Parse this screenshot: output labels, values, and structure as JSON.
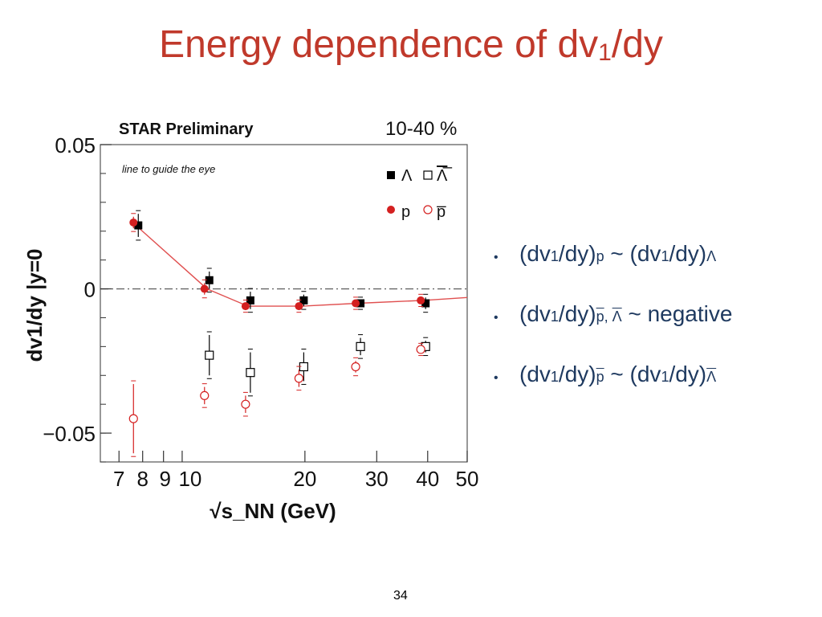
{
  "title": {
    "main": "Energy dependence of dv",
    "sub": "1",
    "tail": "/dy"
  },
  "chart_data": {
    "type": "scatter",
    "title": "STAR Preliminary",
    "centrality": "10-40 %",
    "annotation": "line to guide the eye",
    "xlabel": "√s_NN (GeV)",
    "ylabel": "dv1/dy |y=0",
    "xscale": "log",
    "xlim": [
      6.3,
      50
    ],
    "ylim": [
      -0.06,
      0.05
    ],
    "xticks": [
      "7",
      "8",
      "9",
      "10",
      "20",
      "30",
      "40",
      "50"
    ],
    "xtick_values": [
      7,
      8,
      9,
      10,
      20,
      30,
      40,
      50
    ],
    "yticks": [
      "0.05",
      "0",
      "−0.05"
    ],
    "ytick_values": [
      0.05,
      0,
      -0.05
    ],
    "legend": [
      "Λ",
      "Λ̅",
      "p",
      "p̅"
    ],
    "series": [
      {
        "name": "Lambda",
        "marker": "filled-square",
        "color": "#000000",
        "x": [
          7.7,
          11.5,
          14.5,
          19.6,
          27,
          39
        ],
        "y": [
          0.022,
          0.003,
          -0.004,
          -0.004,
          -0.005,
          -0.005
        ],
        "err": [
          0.004,
          0.003,
          0.003,
          0.002,
          0.001,
          0.002
        ]
      },
      {
        "name": "Lambda-bar",
        "marker": "open-square",
        "color": "#000000",
        "x": [
          11.5,
          14.5,
          19.6,
          27,
          39
        ],
        "y": [
          -0.023,
          -0.029,
          -0.027,
          -0.02,
          -0.02
        ],
        "err": [
          0.007,
          0.007,
          0.005,
          0.003,
          0.002
        ]
      },
      {
        "name": "p",
        "marker": "filled-circle",
        "color": "#d42020",
        "x": [
          7.7,
          11.5,
          14.5,
          19.6,
          27,
          39
        ],
        "y": [
          0.023,
          0.0,
          -0.006,
          -0.006,
          -0.005,
          -0.004
        ],
        "err": [
          0.002,
          0.002,
          0.001,
          0.001,
          0.001,
          0.001
        ]
      },
      {
        "name": "p-bar",
        "marker": "open-circle",
        "color": "#d42020",
        "x": [
          7.7,
          11.5,
          14.5,
          19.6,
          27,
          39
        ],
        "y": [
          -0.045,
          -0.037,
          -0.04,
          -0.031,
          -0.027,
          -0.021
        ],
        "err": [
          0.012,
          0.003,
          0.003,
          0.003,
          0.002,
          0.001
        ]
      }
    ],
    "guide_line": {
      "x": [
        7.7,
        11.5,
        14.5,
        19.6,
        27,
        39,
        50
      ],
      "y": [
        0.022,
        0.0,
        -0.006,
        -0.006,
        -0.005,
        -0.004,
        -0.003
      ]
    }
  },
  "bullets": [
    {
      "a": "(dv",
      "a_sub": "1",
      "b": "/dy)",
      "b_sub": "p",
      "c": " ~ (dv",
      "c_sub": "1",
      "d": "/dy)",
      "d_sub": "Λ"
    },
    {
      "a": "(dv",
      "a_sub": "1",
      "b": "/dy)",
      "b_sub1": "p",
      "b_sep": ", ",
      "b_sub2": "Λ",
      "c": " ~ negative"
    },
    {
      "a": "(dv",
      "a_sub": "1",
      "b": "/dy)",
      "b_sub": "p",
      "c": " ~ (dv",
      "c_sub": "1",
      "d": "/dy)",
      "d_sub": "Λ"
    }
  ],
  "page_number": "34"
}
